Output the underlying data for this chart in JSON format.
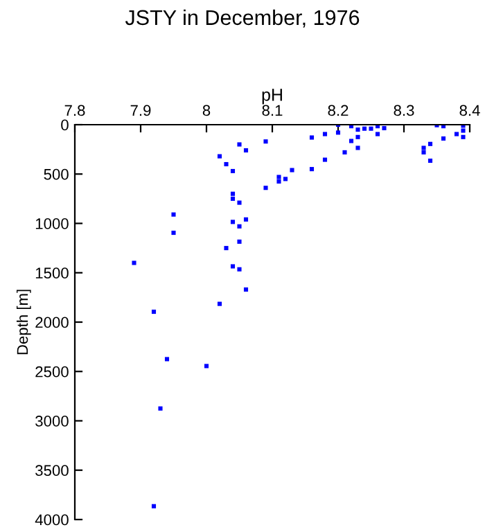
{
  "chart_data": {
    "type": "scatter",
    "title": "JSTY in December, 1976",
    "xlabel": "pH",
    "ylabel": "Depth [m]",
    "x": [
      8.02,
      8.03,
      8.04,
      8.05,
      8.06,
      8.09,
      8.11,
      8.12,
      8.13,
      8.16,
      8.16,
      8.18,
      8.18,
      8.2,
      8.2,
      8.21,
      8.22,
      8.22,
      8.23,
      8.23,
      8.23,
      8.24,
      8.25,
      8.26,
      8.26,
      8.27,
      8.33,
      8.33,
      8.34,
      8.34,
      8.35,
      8.36,
      8.36,
      8.38,
      8.39,
      8.39,
      8.39,
      8.09,
      8.11,
      8.04,
      8.04,
      8.05,
      8.04,
      8.05,
      8.06,
      8.03,
      8.05,
      8.04,
      8.05,
      8.06,
      8.02,
      7.89,
      7.95,
      7.95,
      7.92,
      7.94,
      8.0,
      7.93,
      7.92
    ],
    "values": [
      320,
      400,
      470,
      200,
      260,
      170,
      530,
      550,
      460,
      130,
      450,
      95,
      355,
      0,
      80,
      280,
      15,
      165,
      50,
      125,
      235,
      40,
      40,
      15,
      95,
      35,
      235,
      280,
      195,
      365,
      5,
      15,
      140,
      95,
      60,
      125,
      10,
      640,
      575,
      700,
      750,
      790,
      985,
      1030,
      960,
      1250,
      1185,
      1435,
      1465,
      1670,
      1815,
      1400,
      910,
      1095,
      1895,
      2375,
      2445,
      2875,
      3865
    ],
    "color": "#0000ff",
    "marker": "square",
    "xlim": [
      7.8,
      8.4
    ],
    "xticks": [
      7.8,
      7.9,
      8,
      8.1,
      8.2,
      8.3,
      8.4
    ],
    "ylim": [
      4000,
      0
    ],
    "yticks": [
      0,
      500,
      1000,
      1500,
      2000,
      2500,
      3000,
      3500,
      4000
    ],
    "grid": false
  }
}
